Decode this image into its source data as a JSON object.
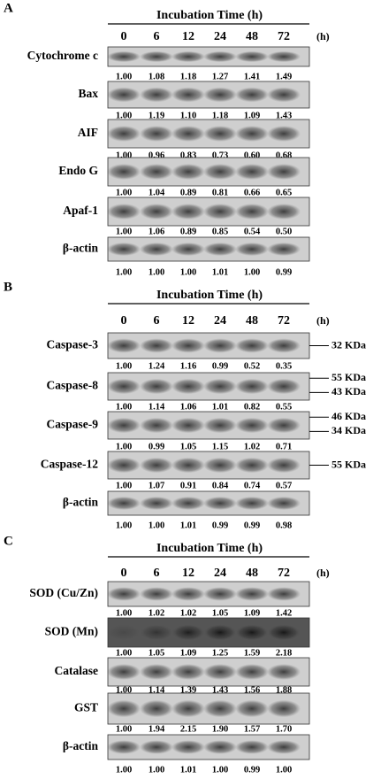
{
  "panels": [
    {
      "letter": "A",
      "header": "Incubation Time (h)",
      "times": [
        0,
        6,
        12,
        24,
        48,
        72
      ],
      "unit": "(h)",
      "blots": [
        {
          "label": "Cytochrome c",
          "values": [
            "1.00",
            "1.08",
            "1.18",
            "1.27",
            "1.41",
            "1.49"
          ]
        },
        {
          "label": "Bax",
          "values": [
            "1.00",
            "1.19",
            "1.10",
            "1.18",
            "1.09",
            "1.43"
          ]
        },
        {
          "label": "AIF",
          "values": [
            "1.00",
            "0.96",
            "0.83",
            "0.73",
            "0.60",
            "0.68"
          ]
        },
        {
          "label": "Endo G",
          "values": [
            "1.00",
            "1.04",
            "0.89",
            "0.81",
            "0.66",
            "0.65"
          ]
        },
        {
          "label": "Apaf-1",
          "values": [
            "1.00",
            "1.06",
            "0.89",
            "0.85",
            "0.54",
            "0.50"
          ]
        },
        {
          "label": "β-actin",
          "values": [
            "1.00",
            "1.00",
            "1.00",
            "1.01",
            "1.00",
            "0.99"
          ]
        }
      ]
    },
    {
      "letter": "B",
      "header": "Incubation Time (h)",
      "times": [
        0,
        6,
        12,
        24,
        48,
        72
      ],
      "unit": "(h)",
      "blots": [
        {
          "label": "Caspase-3",
          "values": [
            "1.00",
            "1.24",
            "1.16",
            "0.99",
            "0.52",
            "0.35"
          ],
          "markers": [
            "32 KDa"
          ]
        },
        {
          "label": "Caspase-8",
          "values": [
            "1.00",
            "1.14",
            "1.06",
            "1.01",
            "0.82",
            "0.55"
          ],
          "markers": [
            "55 KDa",
            "43 KDa"
          ]
        },
        {
          "label": "Caspase-9",
          "values": [
            "1.00",
            "0.99",
            "1.05",
            "1.15",
            "1.02",
            "0.71"
          ],
          "markers": [
            "46 KDa",
            "34 KDa"
          ]
        },
        {
          "label": "Caspase-12",
          "values": [
            "1.00",
            "1.07",
            "0.91",
            "0.84",
            "0.74",
            "0.57"
          ],
          "markers": [
            "55 KDa"
          ]
        },
        {
          "label": "β-actin",
          "values": [
            "1.00",
            "1.00",
            "1.01",
            "0.99",
            "0.99",
            "0.98"
          ]
        }
      ]
    },
    {
      "letter": "C",
      "header": "Incubation Time (h)",
      "times": [
        0,
        6,
        12,
        24,
        48,
        72
      ],
      "unit": "(h)",
      "blots": [
        {
          "label": "SOD (Cu/Zn)",
          "values": [
            "1.00",
            "1.02",
            "1.02",
            "1.05",
            "1.09",
            "1.42"
          ]
        },
        {
          "label": "SOD (Mn)",
          "values": [
            "1.00",
            "1.05",
            "1.09",
            "1.25",
            "1.59",
            "2.18"
          ]
        },
        {
          "label": "Catalase",
          "values": [
            "1.00",
            "1.14",
            "1.39",
            "1.43",
            "1.56",
            "1.88"
          ]
        },
        {
          "label": "GST",
          "values": [
            "1.00",
            "1.94",
            "2.15",
            "1.90",
            "1.57",
            "1.70"
          ]
        },
        {
          "label": "β-actin",
          "values": [
            "1.00",
            "1.00",
            "1.01",
            "1.00",
            "0.99",
            "1.00"
          ]
        }
      ]
    }
  ]
}
